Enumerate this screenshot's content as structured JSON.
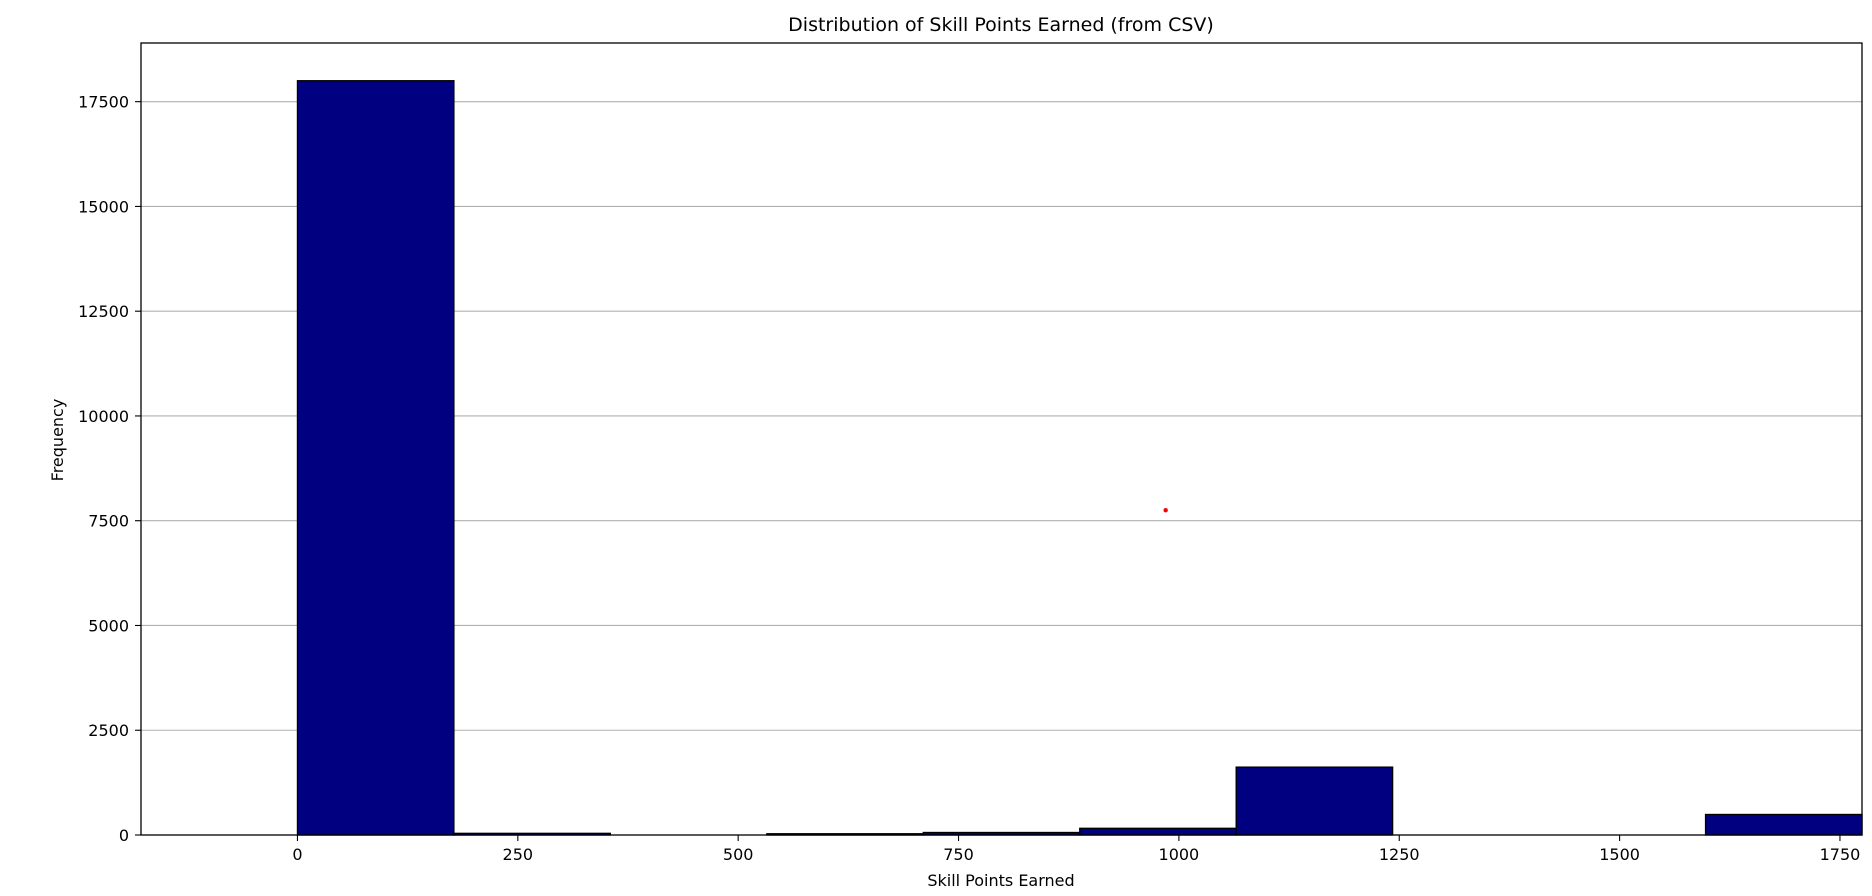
{
  "chart_data": {
    "type": "bar",
    "title": "Distribution of Skill Points Earned (from CSV)",
    "xlabel": "Skill Points Earned",
    "ylabel": "Frequency",
    "xlim": [
      -177.5,
      1775
    ],
    "ylim": [
      0,
      18900
    ],
    "x_ticks": [
      "0",
      "250",
      "500",
      "750",
      "1000",
      "1250",
      "1500",
      "1750"
    ],
    "x_tick_values": [
      0,
      250,
      500,
      750,
      1000,
      1250,
      1500,
      1750
    ],
    "y_ticks": [
      "0",
      "2500",
      "5000",
      "7500",
      "10000",
      "12500",
      "15000",
      "17500"
    ],
    "y_tick_values": [
      0,
      2500,
      5000,
      7500,
      10000,
      12500,
      15000,
      17500
    ],
    "grid": "y",
    "bar_color": "#000080",
    "edge_color": "#000000",
    "bins": [
      {
        "start": 0,
        "end": 177.5,
        "count": 18000
      },
      {
        "start": 177.5,
        "end": 355,
        "count": 40
      },
      {
        "start": 355,
        "end": 532.5,
        "count": 0
      },
      {
        "start": 532.5,
        "end": 710,
        "count": 30
      },
      {
        "start": 710,
        "end": 887.5,
        "count": 60
      },
      {
        "start": 887.5,
        "end": 1065,
        "count": 160
      },
      {
        "start": 1065,
        "end": 1242.5,
        "count": 1620
      },
      {
        "start": 1242.5,
        "end": 1420,
        "count": 0
      },
      {
        "start": 1420,
        "end": 1597.5,
        "count": 0
      },
      {
        "start": 1597.5,
        "end": 1775,
        "count": 490
      }
    ],
    "annotations": [
      {
        "type": "point",
        "x": 985,
        "y": 7750,
        "color": "#ff0000"
      }
    ]
  }
}
